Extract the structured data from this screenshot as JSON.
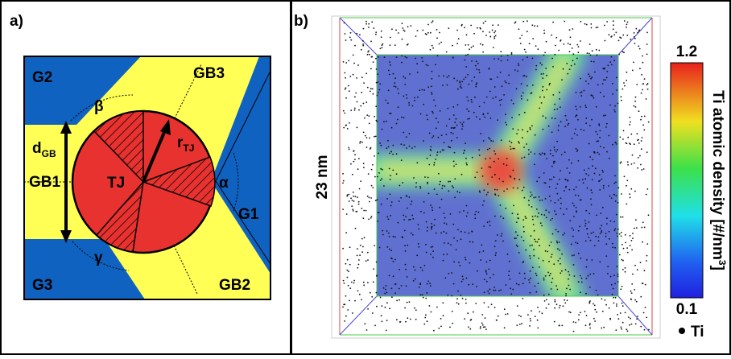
{
  "panel_a": {
    "label": "a)",
    "grains": [
      "G1",
      "G2",
      "G3"
    ],
    "boundaries": [
      "GB1",
      "GB2",
      "GB3"
    ],
    "junction": "TJ",
    "angles": [
      "α",
      "β",
      "γ"
    ],
    "width": {
      "main": "d",
      "sub": "GB"
    },
    "radius": {
      "main": "r",
      "sub": "TJ"
    }
  },
  "panel_b": {
    "label": "b)",
    "scale": "23 nm",
    "colorbar": {
      "max": "1.2",
      "min": "0.1",
      "title": "Ti atomic density [#/nm",
      "title_sup": "3",
      "title_end": "]"
    },
    "legend": "Ti"
  }
}
